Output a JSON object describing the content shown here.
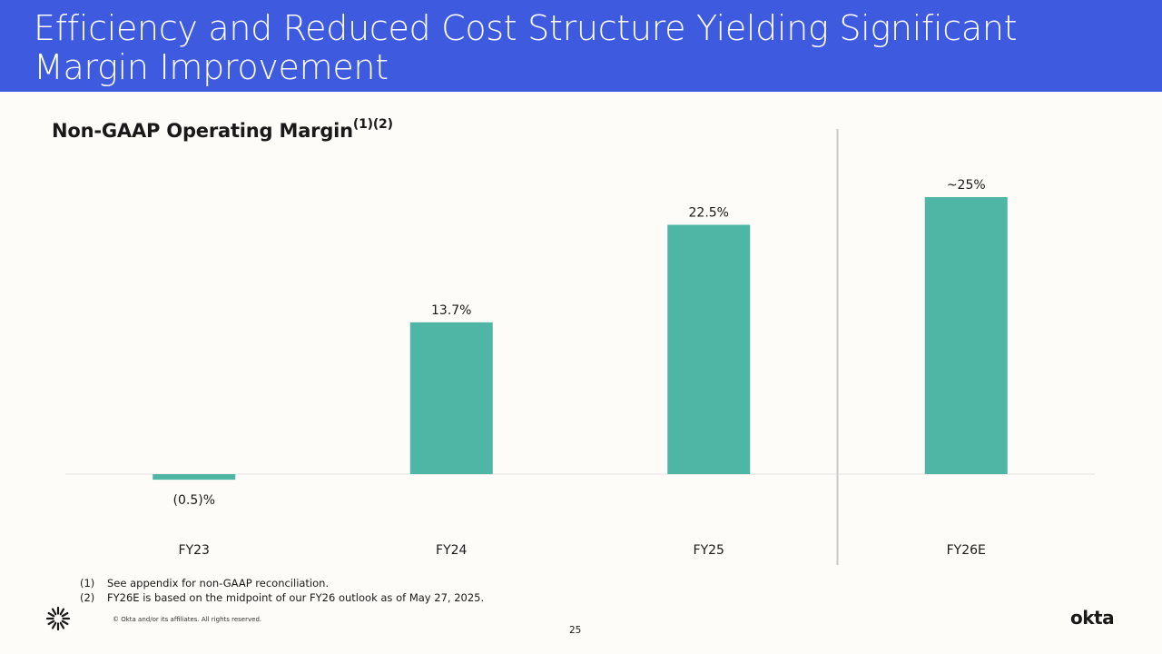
{
  "slide": {
    "title": "Efficiency and Reduced Cost Structure Yielding Significant Margin Improvement",
    "chart_title": "Non-GAAP Operating Margin",
    "chart_title_superscript": "(1)(2)",
    "footnotes": [
      {
        "num": "(1)",
        "text": "See appendix for non-GAAP reconciliation."
      },
      {
        "num": "(2)",
        "text": "FY26E is based on the midpoint of our FY26 outlook as of May 27, 2025."
      }
    ],
    "copyright": "© Okta and/or its affiliates. All rights reserved.",
    "page_number": "25",
    "logo_text": "okta"
  },
  "colors": {
    "header": "#3e5bdf",
    "bar": "#4fb5a5",
    "divider": "#c9c9c9",
    "axis": "#e2e2e2"
  },
  "chart_data": {
    "type": "bar",
    "title": "Non-GAAP Operating Margin",
    "categories": [
      "FY23",
      "FY24",
      "FY25",
      "FY26E"
    ],
    "values": [
      -0.5,
      13.7,
      22.5,
      25
    ],
    "data_labels": [
      "(0.5)%",
      "13.7%",
      "22.5%",
      "~25%"
    ],
    "ylim": [
      -2,
      27
    ],
    "unit": "%",
    "xlabel": "",
    "ylabel": "",
    "grid": false,
    "divider_before_category": "FY26E"
  }
}
